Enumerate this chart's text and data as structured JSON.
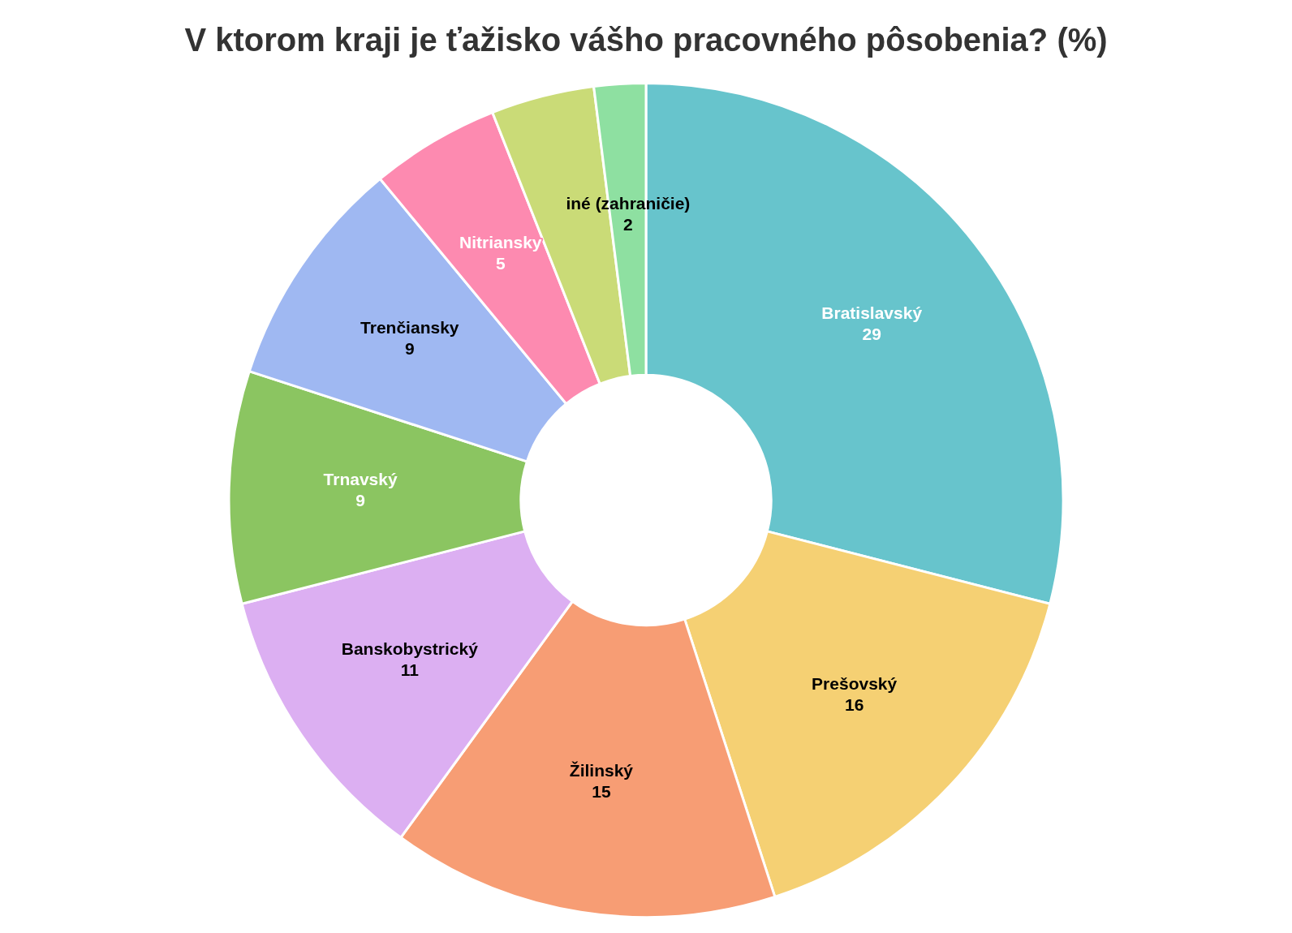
{
  "chart_data": {
    "type": "donut",
    "title": "V ktorom kraji je ťažisko vášho pracovného pôsobenia? (%)",
    "categories": [
      "Bratislavský",
      "Prešovský",
      "Žilinský",
      "Banskobystrický",
      "Trnavský",
      "Trenčiansky",
      "Nitriansky",
      null,
      "iné (zahraničie)"
    ],
    "values": [
      29,
      16,
      15,
      11,
      9,
      9,
      5,
      4,
      2
    ],
    "colors": [
      "#67c4cc",
      "#f5d073",
      "#f79d74",
      "#dcaff2",
      "#8bc561",
      "#9fb8f2",
      "#fd8ab0",
      "#cadb77",
      "#8ee0a1"
    ],
    "value_labels": [
      "29",
      "16",
      "15",
      "11",
      "9",
      "9",
      "5",
      null,
      "2"
    ],
    "legend": false
  }
}
